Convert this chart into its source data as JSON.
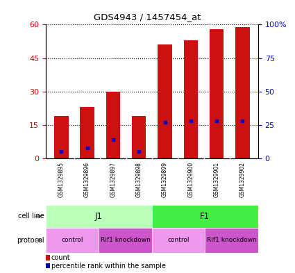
{
  "title": "GDS4943 / 1457454_at",
  "samples": [
    "GSM1329895",
    "GSM1329896",
    "GSM1329897",
    "GSM1329898",
    "GSM1329899",
    "GSM1329900",
    "GSM1329901",
    "GSM1329902"
  ],
  "counts": [
    19,
    23,
    30,
    19,
    51,
    53,
    58,
    59
  ],
  "percentile_ranks": [
    5,
    8,
    14,
    5,
    27,
    28,
    28,
    28
  ],
  "left_ylim": [
    0,
    60
  ],
  "right_ylim": [
    0,
    100
  ],
  "left_yticks": [
    0,
    15,
    30,
    45,
    60
  ],
  "right_yticks": [
    0,
    25,
    50,
    75,
    100
  ],
  "right_yticklabels": [
    "0",
    "25",
    "50",
    "75",
    "100%"
  ],
  "bar_color": "#cc1111",
  "percentile_color": "#0000cc",
  "cell_line_groups": [
    {
      "label": "J1",
      "start": 0,
      "end": 4,
      "color": "#bbffbb"
    },
    {
      "label": "F1",
      "start": 4,
      "end": 8,
      "color": "#44ee44"
    }
  ],
  "protocol_groups": [
    {
      "label": "control",
      "start": 0,
      "end": 2,
      "color": "#ee99ee"
    },
    {
      "label": "Rif1 knockdown",
      "start": 2,
      "end": 4,
      "color": "#cc55cc"
    },
    {
      "label": "control",
      "start": 4,
      "end": 6,
      "color": "#ee99ee"
    },
    {
      "label": "Rif1 knockdown",
      "start": 6,
      "end": 8,
      "color": "#cc55cc"
    }
  ],
  "left_tick_color": "#cc0000",
  "right_tick_color": "#0000bb",
  "grid_color": "#000000",
  "sample_bg_color": "#cccccc",
  "legend_count_color": "#cc1111",
  "legend_percentile_color": "#0000cc"
}
